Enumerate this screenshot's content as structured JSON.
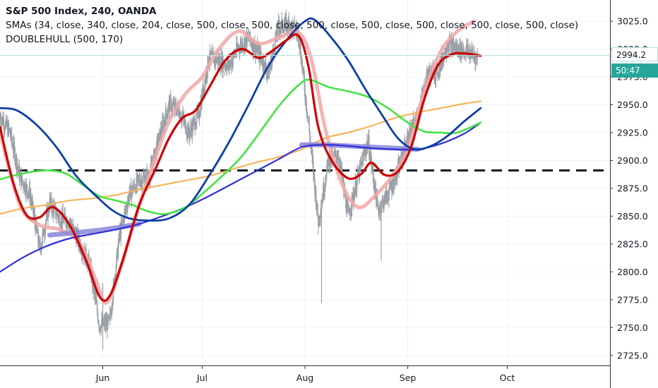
{
  "header": {
    "title": "S&P 500 Index, 240, OANDA",
    "study_sma": "SMAs (34, close, 340, close, 204, close, 500, close, 500, close, 500, close, 500, close, 500, close, 500, close, 500, close)",
    "study_hull": "DOUBLEHULL (500, 170)"
  },
  "price_axis": {
    "last_price": "2994.2",
    "countdown": "50:47"
  },
  "colors": {
    "candle": "#9aa0a6",
    "hull_fast": "#cc0000",
    "hull_band": "#f2a7a7",
    "blue_line": "#0d3fa6",
    "green_line": "#44e344",
    "orange_line": "#f5b45c",
    "purple_line": "#2f2fd9",
    "purple_band": "#8a86d8",
    "dashed_level": "#131722",
    "last_price_line": "#b2dfdb"
  },
  "chart_data": {
    "type": "line",
    "title": "S&P 500 Index, 240, OANDA",
    "y_ticks": [
      2725.0,
      2750.0,
      2775.0,
      2800.0,
      2825.0,
      2850.0,
      2875.0,
      2900.0,
      2925.0,
      2950.0,
      2975.0,
      3000.0,
      3025.0
    ],
    "y_tick_labels": [
      "2725.0",
      "2750.0",
      "2775.0",
      "2800.0",
      "2825.0",
      "2850.0",
      "2875.0",
      "2900.0",
      "2925.0",
      "2950.0",
      "2975.0",
      "3000.0",
      "3025.0"
    ],
    "ylim": [
      2716,
      3044
    ],
    "x_ticks": [
      {
        "label": "Jun",
        "x": "2019-06-01"
      },
      {
        "label": "Jul",
        "x": "2019-07-01"
      },
      {
        "label": "Aug",
        "x": "2019-08-01"
      },
      {
        "label": "Sep",
        "x": "2019-09-01"
      },
      {
        "label": "Oct",
        "x": "2019-10-01"
      }
    ],
    "xlim": [
      "2019-05-01",
      "2019-11-01"
    ],
    "horizontal_level": 2891,
    "last_price": 2994.2,
    "series": [
      {
        "key": "price",
        "style": "candles",
        "points": [
          [
            "2019-05-01",
            2940
          ],
          [
            "2019-05-04",
            2925
          ],
          [
            "2019-05-07",
            2885
          ],
          [
            "2019-05-10",
            2870
          ],
          [
            "2019-05-13",
            2820
          ],
          [
            "2019-05-16",
            2862
          ],
          [
            "2019-05-19",
            2848
          ],
          [
            "2019-05-22",
            2845
          ],
          [
            "2019-05-25",
            2826
          ],
          [
            "2019-05-28",
            2806
          ],
          [
            "2019-05-31",
            2752
          ],
          [
            "2019-06-03",
            2754
          ],
          [
            "2019-06-06",
            2832
          ],
          [
            "2019-06-09",
            2870
          ],
          [
            "2019-06-12",
            2882
          ],
          [
            "2019-06-15",
            2886
          ],
          [
            "2019-06-18",
            2920
          ],
          [
            "2019-06-21",
            2950
          ],
          [
            "2019-06-24",
            2945
          ],
          [
            "2019-06-27",
            2924
          ],
          [
            "2019-06-30",
            2942
          ],
          [
            "2019-07-03",
            2992
          ],
          [
            "2019-07-06",
            2990
          ],
          [
            "2019-07-09",
            2985
          ],
          [
            "2019-07-12",
            3002
          ],
          [
            "2019-07-15",
            3010
          ],
          [
            "2019-07-18",
            2996
          ],
          [
            "2019-07-21",
            2978
          ],
          [
            "2019-07-24",
            3020
          ],
          [
            "2019-07-27",
            3022
          ],
          [
            "2019-07-30",
            3015
          ],
          [
            "2019-08-02",
            2935
          ],
          [
            "2019-08-05",
            2845
          ],
          [
            "2019-08-08",
            2900
          ],
          [
            "2019-08-11",
            2905
          ],
          [
            "2019-08-14",
            2850
          ],
          [
            "2019-08-17",
            2885
          ],
          [
            "2019-08-20",
            2918
          ],
          [
            "2019-08-23",
            2855
          ],
          [
            "2019-08-26",
            2870
          ],
          [
            "2019-08-29",
            2890
          ],
          [
            "2019-09-01",
            2920
          ],
          [
            "2019-09-04",
            2940
          ],
          [
            "2019-09-07",
            2978
          ],
          [
            "2019-09-10",
            2980
          ],
          [
            "2019-09-13",
            3005
          ],
          [
            "2019-09-16",
            3000
          ],
          [
            "2019-09-19",
            2998
          ],
          [
            "2019-09-22",
            2992
          ]
        ]
      },
      {
        "key": "hull_fast",
        "style": "line",
        "points": [
          [
            "2019-05-01",
            2930
          ],
          [
            "2019-05-05",
            2880
          ],
          [
            "2019-05-09",
            2851
          ],
          [
            "2019-05-13",
            2849
          ],
          [
            "2019-05-17",
            2858
          ],
          [
            "2019-05-22",
            2842
          ],
          [
            "2019-05-27",
            2810
          ],
          [
            "2019-05-31",
            2778
          ],
          [
            "2019-06-03",
            2778
          ],
          [
            "2019-06-07",
            2810
          ],
          [
            "2019-06-12",
            2860
          ],
          [
            "2019-06-17",
            2893
          ],
          [
            "2019-06-21",
            2920
          ],
          [
            "2019-06-25",
            2938
          ],
          [
            "2019-06-29",
            2945
          ],
          [
            "2019-07-03",
            2965
          ],
          [
            "2019-07-08",
            2990
          ],
          [
            "2019-07-13",
            3000
          ],
          [
            "2019-07-18",
            2992
          ],
          [
            "2019-07-22",
            2998
          ],
          [
            "2019-07-26",
            3007
          ],
          [
            "2019-07-30",
            3012
          ],
          [
            "2019-08-02",
            2985
          ],
          [
            "2019-08-05",
            2930
          ],
          [
            "2019-08-09",
            2900
          ],
          [
            "2019-08-14",
            2884
          ],
          [
            "2019-08-18",
            2888
          ],
          [
            "2019-08-21",
            2898
          ],
          [
            "2019-08-25",
            2887
          ],
          [
            "2019-08-29",
            2890
          ],
          [
            "2019-09-02",
            2912
          ],
          [
            "2019-09-06",
            2955
          ],
          [
            "2019-09-10",
            2985
          ],
          [
            "2019-09-14",
            2995
          ],
          [
            "2019-09-18",
            2996
          ],
          [
            "2019-09-23",
            2994
          ]
        ]
      },
      {
        "key": "hull_band",
        "style": "band",
        "points": [
          [
            "2019-05-01",
            2925
          ],
          [
            "2019-05-07",
            2860
          ],
          [
            "2019-05-13",
            2842
          ],
          [
            "2019-05-19",
            2838
          ],
          [
            "2019-05-25",
            2826
          ],
          [
            "2019-05-30",
            2792
          ],
          [
            "2019-06-02",
            2772
          ],
          [
            "2019-06-06",
            2800
          ],
          [
            "2019-06-11",
            2850
          ],
          [
            "2019-06-16",
            2895
          ],
          [
            "2019-06-21",
            2935
          ],
          [
            "2019-06-26",
            2960
          ],
          [
            "2019-07-01",
            2975
          ],
          [
            "2019-07-06",
            3000
          ],
          [
            "2019-07-12",
            3016
          ],
          [
            "2019-07-18",
            3005
          ],
          [
            "2019-07-24",
            3010
          ],
          [
            "2019-07-30",
            3015
          ],
          [
            "2019-08-03",
            2990
          ],
          [
            "2019-08-07",
            2930
          ],
          [
            "2019-08-12",
            2880
          ],
          [
            "2019-08-17",
            2858
          ],
          [
            "2019-08-22",
            2868
          ],
          [
            "2019-08-27",
            2885
          ],
          [
            "2019-09-01",
            2910
          ],
          [
            "2019-09-06",
            2962
          ],
          [
            "2019-09-11",
            2998
          ],
          [
            "2019-09-16",
            3016
          ],
          [
            "2019-09-21",
            3025
          ]
        ]
      },
      {
        "key": "blue_line",
        "style": "line",
        "points": [
          [
            "2019-05-01",
            2947
          ],
          [
            "2019-05-06",
            2945
          ],
          [
            "2019-05-12",
            2932
          ],
          [
            "2019-05-18",
            2912
          ],
          [
            "2019-05-24",
            2886
          ],
          [
            "2019-05-30",
            2868
          ],
          [
            "2019-06-04",
            2855
          ],
          [
            "2019-06-09",
            2848
          ],
          [
            "2019-06-15",
            2846
          ],
          [
            "2019-06-21",
            2848
          ],
          [
            "2019-06-27",
            2860
          ],
          [
            "2019-07-03",
            2886
          ],
          [
            "2019-07-09",
            2916
          ],
          [
            "2019-07-15",
            2950
          ],
          [
            "2019-07-21",
            2985
          ],
          [
            "2019-07-27",
            3010
          ],
          [
            "2019-08-01",
            3025
          ],
          [
            "2019-08-04",
            3026
          ],
          [
            "2019-08-09",
            3010
          ],
          [
            "2019-08-14",
            2990
          ],
          [
            "2019-08-19",
            2965
          ],
          [
            "2019-08-24",
            2942
          ],
          [
            "2019-08-29",
            2920
          ],
          [
            "2019-09-03",
            2910
          ],
          [
            "2019-09-08",
            2913
          ],
          [
            "2019-09-13",
            2922
          ],
          [
            "2019-09-18",
            2935
          ],
          [
            "2019-09-23",
            2947
          ]
        ]
      },
      {
        "key": "green_line",
        "style": "line",
        "points": [
          [
            "2019-05-01",
            2883
          ],
          [
            "2019-05-06",
            2887
          ],
          [
            "2019-05-11",
            2890
          ],
          [
            "2019-05-16",
            2891
          ],
          [
            "2019-05-21",
            2888
          ],
          [
            "2019-05-26",
            2878
          ],
          [
            "2019-05-31",
            2868
          ],
          [
            "2019-06-05",
            2864
          ],
          [
            "2019-06-10",
            2860
          ],
          [
            "2019-06-15",
            2854
          ],
          [
            "2019-06-20",
            2852
          ],
          [
            "2019-06-26",
            2858
          ],
          [
            "2019-07-01",
            2870
          ],
          [
            "2019-07-07",
            2886
          ],
          [
            "2019-07-13",
            2904
          ],
          [
            "2019-07-19",
            2928
          ],
          [
            "2019-07-25",
            2952
          ],
          [
            "2019-07-31",
            2970
          ],
          [
            "2019-08-03",
            2972
          ],
          [
            "2019-08-08",
            2966
          ],
          [
            "2019-08-14",
            2962
          ],
          [
            "2019-08-20",
            2957
          ],
          [
            "2019-08-26",
            2947
          ],
          [
            "2019-09-01",
            2934
          ],
          [
            "2019-09-06",
            2926
          ],
          [
            "2019-09-11",
            2925
          ],
          [
            "2019-09-16",
            2925
          ],
          [
            "2019-09-23",
            2934
          ]
        ]
      },
      {
        "key": "orange_line",
        "style": "line",
        "points": [
          [
            "2019-05-01",
            2852
          ],
          [
            "2019-05-08",
            2857
          ],
          [
            "2019-05-15",
            2860
          ],
          [
            "2019-05-22",
            2864
          ],
          [
            "2019-05-29",
            2866
          ],
          [
            "2019-06-05",
            2869
          ],
          [
            "2019-06-12",
            2874
          ],
          [
            "2019-06-19",
            2878
          ],
          [
            "2019-06-26",
            2882
          ],
          [
            "2019-07-03",
            2886
          ],
          [
            "2019-07-10",
            2892
          ],
          [
            "2019-07-17",
            2898
          ],
          [
            "2019-07-24",
            2903
          ],
          [
            "2019-07-31",
            2910
          ],
          [
            "2019-08-07",
            2920
          ],
          [
            "2019-08-14",
            2925
          ],
          [
            "2019-08-21",
            2931
          ],
          [
            "2019-08-28",
            2938
          ],
          [
            "2019-09-04",
            2943
          ],
          [
            "2019-09-11",
            2947
          ],
          [
            "2019-09-18",
            2951
          ],
          [
            "2019-09-23",
            2953
          ]
        ]
      },
      {
        "key": "purple_line",
        "style": "line",
        "points": [
          [
            "2019-05-01",
            2800
          ],
          [
            "2019-05-08",
            2813
          ],
          [
            "2019-05-15",
            2823
          ],
          [
            "2019-05-22",
            2830
          ],
          [
            "2019-05-29",
            2834
          ],
          [
            "2019-06-05",
            2838
          ],
          [
            "2019-06-12",
            2843
          ],
          [
            "2019-06-19",
            2850
          ],
          [
            "2019-06-26",
            2858
          ],
          [
            "2019-07-03",
            2868
          ],
          [
            "2019-07-10",
            2879
          ],
          [
            "2019-07-17",
            2890
          ],
          [
            "2019-07-24",
            2901
          ],
          [
            "2019-07-31",
            2912
          ],
          [
            "2019-08-07",
            2914
          ],
          [
            "2019-08-14",
            2913
          ],
          [
            "2019-08-21",
            2911
          ],
          [
            "2019-08-28",
            2910
          ],
          [
            "2019-09-04",
            2910
          ],
          [
            "2019-09-11",
            2915
          ],
          [
            "2019-09-18",
            2924
          ],
          [
            "2019-09-23",
            2934
          ]
        ]
      },
      {
        "key": "purple_band",
        "style": "band",
        "points": [
          [
            "2019-05-16",
            2833
          ],
          [
            "2019-05-23",
            2835
          ],
          [
            "2019-05-30",
            2837
          ],
          [
            "2019-06-06",
            2840
          ],
          [
            "2019-06-12",
            2843
          ],
          [
            "2019-07-31",
            2914
          ],
          [
            "2019-08-07",
            2914
          ],
          [
            "2019-08-14",
            2913
          ],
          [
            "2019-08-21",
            2912
          ],
          [
            "2019-08-28",
            2911
          ],
          [
            "2019-09-04",
            2910
          ]
        ]
      }
    ]
  }
}
